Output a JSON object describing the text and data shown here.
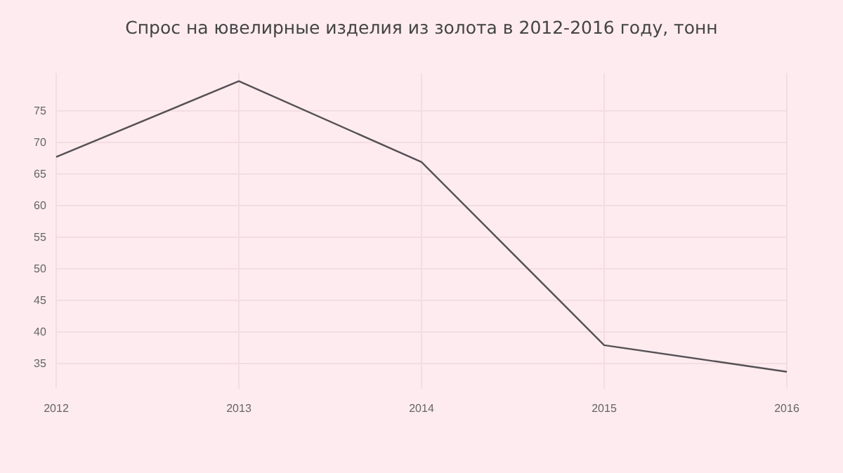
{
  "chart_data": {
    "type": "line",
    "title": "Спрос на ювелирные изделия из золота в 2012-2016 году, тонн",
    "x": [
      2012,
      2013,
      2014,
      2015,
      2016
    ],
    "series": [
      {
        "color": "#555055",
        "values": [
          67.7,
          79.7,
          66.9,
          37.9,
          33.7
        ]
      }
    ],
    "xlim": [
      2012,
      2016
    ],
    "xticks": [
      2012,
      2013,
      2014,
      2015,
      2016
    ],
    "ylim": [
      31,
      81
    ],
    "yticks": [
      35,
      40,
      45,
      50,
      55,
      60,
      65,
      70,
      75
    ],
    "grid": true,
    "marker": "none",
    "line_style": "solid"
  }
}
